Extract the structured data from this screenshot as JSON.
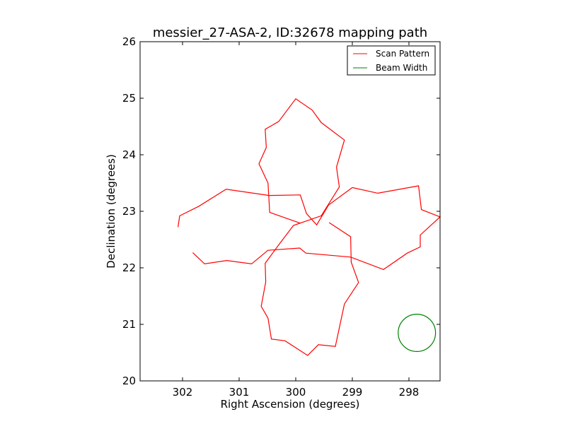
{
  "chart_data": {
    "type": "line",
    "title": "messier_27-ASA-2, ID:32678 mapping path",
    "xlabel": "Right Ascension (degrees)",
    "ylabel": "Declination (degrees)",
    "xlim": [
      302.75,
      297.45
    ],
    "ylim": [
      20,
      26
    ],
    "xticks": [
      302,
      301,
      300,
      299,
      298
    ],
    "xtick_labels": [
      "302",
      "301",
      "300",
      "299",
      "298"
    ],
    "yticks": [
      20,
      21,
      22,
      23,
      24,
      25,
      26
    ],
    "ytick_labels": [
      "20",
      "21",
      "22",
      "23",
      "24",
      "25",
      "26"
    ],
    "legend_position": "upper right",
    "series": [
      {
        "name": "Scan Pattern",
        "color": "#ff0000",
        "points": [
          [
            302.08,
            22.72
          ],
          [
            302.05,
            22.92
          ],
          [
            301.71,
            23.09
          ],
          [
            301.23,
            23.39
          ],
          [
            300.47,
            23.28
          ],
          [
            299.92,
            23.29
          ],
          [
            299.81,
            22.96
          ],
          [
            299.63,
            22.76
          ],
          [
            299.42,
            23.11
          ],
          [
            299.0,
            23.42
          ],
          [
            298.55,
            23.32
          ],
          [
            297.83,
            23.45
          ],
          [
            297.78,
            23.03
          ],
          [
            297.45,
            22.9
          ],
          [
            297.8,
            22.58
          ],
          [
            297.8,
            22.37
          ],
          [
            298.03,
            22.26
          ],
          [
            298.45,
            21.97
          ],
          [
            299.03,
            22.19
          ],
          [
            299.82,
            22.26
          ],
          [
            299.93,
            22.35
          ],
          [
            300.49,
            22.31
          ],
          [
            300.78,
            22.07
          ],
          [
            301.22,
            22.13
          ],
          [
            301.61,
            22.07
          ],
          [
            301.82,
            22.27
          ]
        ]
      },
      {
        "name": "Scan Pattern",
        "color": "#ff0000",
        "points": [
          [
            299.41,
            22.8
          ],
          [
            299.03,
            22.55
          ],
          [
            299.02,
            22.1
          ],
          [
            298.89,
            21.74
          ],
          [
            299.14,
            21.36
          ],
          [
            299.3,
            20.61
          ],
          [
            299.6,
            20.64
          ],
          [
            299.79,
            20.45
          ],
          [
            300.19,
            20.71
          ],
          [
            300.43,
            20.74
          ],
          [
            300.49,
            21.11
          ],
          [
            300.61,
            21.32
          ],
          [
            300.53,
            21.75
          ],
          [
            300.54,
            22.08
          ],
          [
            300.29,
            22.42
          ],
          [
            300.04,
            22.75
          ],
          [
            299.55,
            22.92
          ],
          [
            299.23,
            23.43
          ],
          [
            299.28,
            23.78
          ],
          [
            299.14,
            24.26
          ],
          [
            299.55,
            24.57
          ],
          [
            299.71,
            24.79
          ],
          [
            300.0,
            24.99
          ],
          [
            300.3,
            24.59
          ],
          [
            300.54,
            24.45
          ],
          [
            300.52,
            24.13
          ],
          [
            300.65,
            23.84
          ],
          [
            300.49,
            23.5
          ],
          [
            300.46,
            22.98
          ],
          [
            299.92,
            22.79
          ]
        ]
      },
      {
        "name": "Beam Width",
        "color": "#008000",
        "shape": "circle",
        "center": [
          297.86,
          20.85
        ],
        "radius_deg": 0.33
      }
    ],
    "legend": [
      {
        "label": "Scan Pattern",
        "color": "#ff0000"
      },
      {
        "label": "Beam Width",
        "color": "#008000"
      }
    ]
  }
}
